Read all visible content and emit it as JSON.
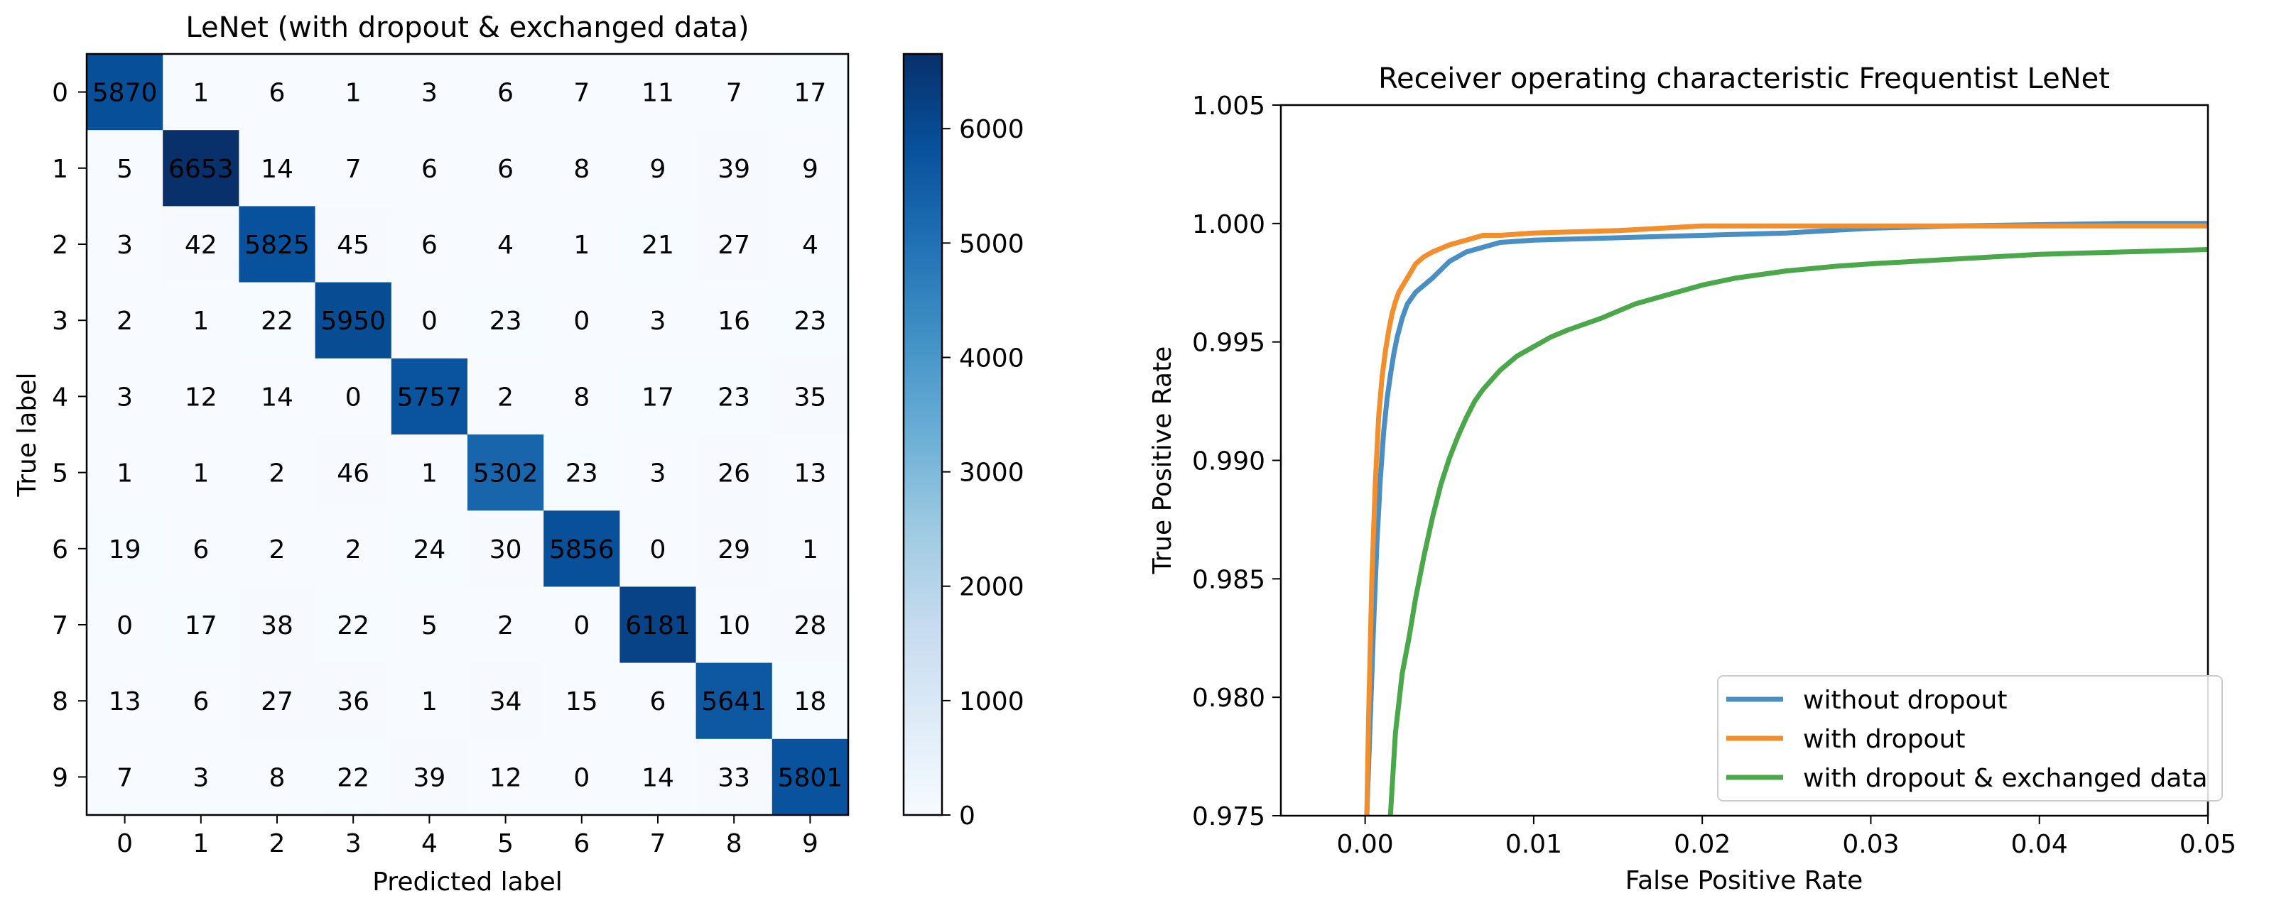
{
  "chart_data": [
    {
      "type": "heatmap",
      "title": "LeNet (with dropout & exchanged data)",
      "xlabel": "Predicted label",
      "ylabel": "True label",
      "x_categories": [
        "0",
        "1",
        "2",
        "3",
        "4",
        "5",
        "6",
        "7",
        "8",
        "9"
      ],
      "y_categories": [
        "0",
        "1",
        "2",
        "3",
        "4",
        "5",
        "6",
        "7",
        "8",
        "9"
      ],
      "matrix": [
        [
          5870,
          1,
          6,
          1,
          3,
          6,
          7,
          11,
          7,
          17
        ],
        [
          5,
          6653,
          14,
          7,
          6,
          6,
          8,
          9,
          39,
          9
        ],
        [
          3,
          42,
          5825,
          45,
          6,
          4,
          1,
          21,
          27,
          4
        ],
        [
          2,
          1,
          22,
          5950,
          0,
          23,
          0,
          3,
          16,
          23
        ],
        [
          3,
          12,
          14,
          0,
          5757,
          2,
          8,
          17,
          23,
          35
        ],
        [
          1,
          1,
          2,
          46,
          1,
          5302,
          23,
          3,
          26,
          13
        ],
        [
          19,
          6,
          2,
          2,
          24,
          30,
          5856,
          0,
          29,
          1
        ],
        [
          0,
          17,
          38,
          22,
          5,
          2,
          0,
          6181,
          10,
          28
        ],
        [
          13,
          6,
          27,
          36,
          1,
          34,
          15,
          6,
          5641,
          18
        ],
        [
          7,
          3,
          8,
          22,
          39,
          12,
          0,
          14,
          33,
          5801
        ]
      ],
      "colorbar": {
        "min": 0,
        "max": 6653,
        "ticks": [
          0,
          1000,
          2000,
          3000,
          4000,
          5000,
          6000
        ],
        "tick_labels": [
          "0",
          "1000",
          "2000",
          "3000",
          "4000",
          "5000",
          "6000"
        ],
        "colormap": "Blues"
      }
    },
    {
      "type": "line",
      "title": "Receiver operating characteristic Frequentist LeNet",
      "xlabel": "False Positive Rate",
      "ylabel": "True Positive Rate",
      "xlim": [
        -0.005,
        0.05
      ],
      "ylim": [
        0.975,
        1.005
      ],
      "xticks": [
        0.0,
        0.01,
        0.02,
        0.03,
        0.04,
        0.05
      ],
      "xtick_labels": [
        "0.00",
        "0.01",
        "0.02",
        "0.03",
        "0.04",
        "0.05"
      ],
      "yticks": [
        0.975,
        0.98,
        0.985,
        0.99,
        0.995,
        1.0,
        1.005
      ],
      "ytick_labels": [
        "0.975",
        "0.980",
        "0.985",
        "0.990",
        "0.995",
        "1.000",
        "1.005"
      ],
      "legend_position": "lower-right",
      "series": [
        {
          "name": "without dropout",
          "color": "#4a8fc4",
          "x": [
            0.0001,
            0.0003,
            0.0005,
            0.0007,
            0.0009,
            0.0011,
            0.0013,
            0.0015,
            0.0017,
            0.0019,
            0.0022,
            0.0025,
            0.003,
            0.0035,
            0.004,
            0.005,
            0.006,
            0.007,
            0.008,
            0.01,
            0.015,
            0.02,
            0.025,
            0.03,
            0.035,
            0.04,
            0.045,
            0.05
          ],
          "y": [
            0.975,
            0.979,
            0.983,
            0.9865,
            0.9892,
            0.9912,
            0.9926,
            0.9936,
            0.9945,
            0.9952,
            0.996,
            0.9966,
            0.9971,
            0.9974,
            0.9977,
            0.9984,
            0.9988,
            0.999,
            0.9992,
            0.9993,
            0.9994,
            0.9995,
            0.9996,
            0.9998,
            0.9999,
            0.99995,
            1.0,
            1.0
          ]
        },
        {
          "name": "with dropout",
          "color": "#f28e2b",
          "x": [
            0.0001,
            0.0002,
            0.0004,
            0.0006,
            0.0008,
            0.001,
            0.0012,
            0.0014,
            0.0016,
            0.0018,
            0.002,
            0.0025,
            0.003,
            0.0035,
            0.004,
            0.005,
            0.006,
            0.007,
            0.008,
            0.01,
            0.015,
            0.02,
            0.03,
            0.04,
            0.05
          ],
          "y": [
            0.975,
            0.979,
            0.985,
            0.989,
            0.9918,
            0.9935,
            0.9946,
            0.9955,
            0.9962,
            0.9967,
            0.9971,
            0.9977,
            0.9983,
            0.9986,
            0.9988,
            0.9991,
            0.9993,
            0.9995,
            0.9995,
            0.9996,
            0.9997,
            0.9999,
            0.9999,
            0.9999,
            0.9999
          ]
        },
        {
          "name": "with dropout & exchanged data",
          "color": "#4aa84a",
          "x": [
            0.0015,
            0.0018,
            0.0022,
            0.0026,
            0.003,
            0.0035,
            0.004,
            0.0045,
            0.005,
            0.0055,
            0.006,
            0.0065,
            0.007,
            0.008,
            0.009,
            0.01,
            0.011,
            0.012,
            0.014,
            0.016,
            0.018,
            0.02,
            0.022,
            0.025,
            0.028,
            0.03,
            0.035,
            0.04,
            0.045,
            0.05
          ],
          "y": [
            0.975,
            0.9785,
            0.981,
            0.9825,
            0.9842,
            0.986,
            0.9876,
            0.989,
            0.9901,
            0.991,
            0.9918,
            0.9925,
            0.993,
            0.9938,
            0.9944,
            0.9948,
            0.9952,
            0.9955,
            0.996,
            0.9966,
            0.997,
            0.9974,
            0.9977,
            0.998,
            0.9982,
            0.9983,
            0.9985,
            0.9987,
            0.9988,
            0.9989
          ]
        }
      ]
    }
  ]
}
